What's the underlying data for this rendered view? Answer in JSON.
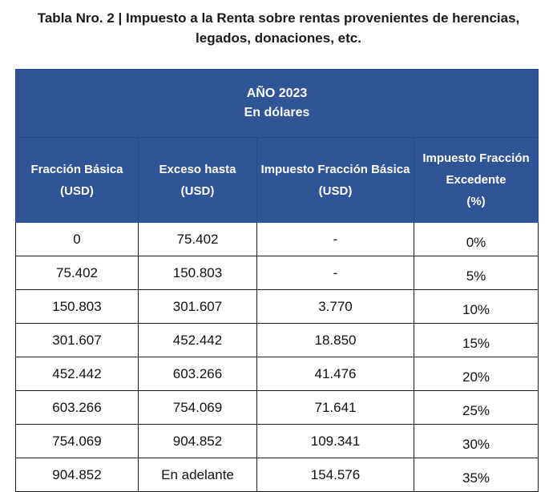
{
  "title": {
    "line1": "Tabla Nro. 2 | Impuesto a la Renta sobre rentas provenientes de herencias,",
    "line2": "legados, donaciones, etc."
  },
  "table": {
    "year_header": {
      "line1": "AÑO 2023",
      "line2": "En dólares"
    },
    "columns": [
      {
        "line1": "Fracción Básica",
        "line2": "(USD)",
        "line3": ""
      },
      {
        "line1": "Exceso hasta",
        "line2": "(USD)",
        "line3": ""
      },
      {
        "line1": "Impuesto Fracción Básica",
        "line2": "(USD)",
        "line3": ""
      },
      {
        "line1": "Impuesto Fracción",
        "line2": "Excedente",
        "line3": "(%)"
      }
    ],
    "rows": [
      [
        "0",
        "75.402",
        "-",
        "0%"
      ],
      [
        "75.402",
        "150.803",
        "-",
        "5%"
      ],
      [
        "150.803",
        "301.607",
        "3.770",
        "10%"
      ],
      [
        "301.607",
        "452.442",
        "18.850",
        "15%"
      ],
      [
        "452.442",
        "603.266",
        "41.476",
        "20%"
      ],
      [
        "603.266",
        "754.069",
        "71.641",
        "25%"
      ],
      [
        "754.069",
        "904.852",
        "109.341",
        "30%"
      ],
      [
        "904.852",
        "En adelante",
        "154.576",
        "35%"
      ]
    ]
  },
  "colors": {
    "header_bg": "#2f5597",
    "header_text": "#ffffff",
    "border": "#1b1b1b"
  }
}
